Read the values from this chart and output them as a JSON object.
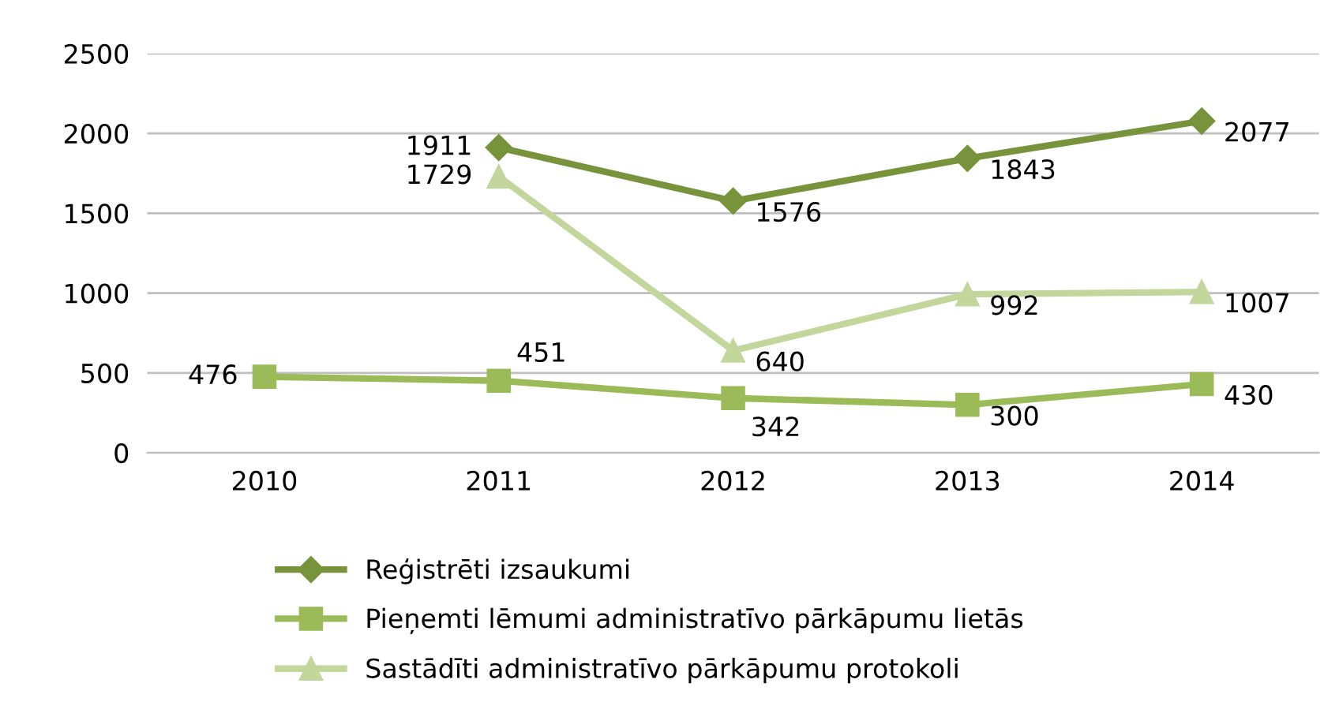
{
  "chart_data": {
    "type": "line",
    "categories": [
      "2010",
      "2011",
      "2012",
      "2013",
      "2014"
    ],
    "series": [
      {
        "name": "Reģistrēti izsaukumi",
        "color": "#77933c",
        "marker": "diamond",
        "values": [
          null,
          1911,
          1576,
          1843,
          2077
        ]
      },
      {
        "name": "Pieņemti lēmumi administratīvo pārkāpumu lietās",
        "color": "#9bbb59",
        "marker": "square",
        "values": [
          476,
          451,
          342,
          300,
          430
        ]
      },
      {
        "name": "Sastādīti administratīvo pārkāpumu protokoli",
        "color": "#c3d69b",
        "marker": "triangle",
        "values": [
          null,
          1729,
          640,
          992,
          1007
        ]
      }
    ],
    "ylim": [
      0,
      2500
    ],
    "yticks": [
      0,
      500,
      1000,
      1500,
      2000,
      2500
    ],
    "grid": "y",
    "legend": "bottom",
    "data_labels": true
  }
}
